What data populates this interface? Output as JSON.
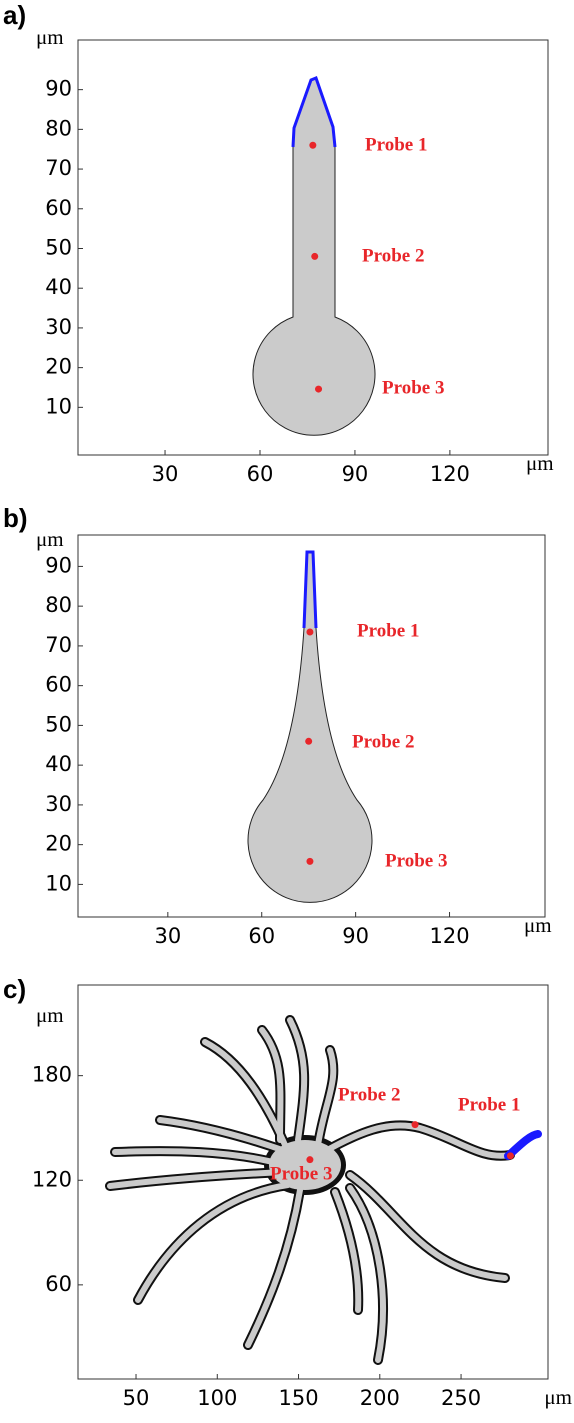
{
  "chart_data": [
    {
      "type": "scatter",
      "panel_label": "a)",
      "x_label": "μm",
      "y_label": "μm",
      "xlim": [
        2.5,
        151
      ],
      "ylim": [
        -2,
        102.5
      ],
      "xticks": [
        30,
        60,
        90,
        120
      ],
      "yticks": [
        10,
        20,
        30,
        40,
        50,
        60,
        70,
        80,
        90
      ],
      "x": [
        76.7,
        77.3,
        78.5
      ],
      "y": [
        76,
        48,
        14.6
      ],
      "point_labels": [
        "Probe 1",
        "Probe 2",
        "Probe 3"
      ],
      "color": "#e8262a"
    },
    {
      "type": "scatter",
      "panel_label": "b)",
      "x_label": "μm",
      "y_label": "μm",
      "xlim": [
        1.3,
        150.5
      ],
      "ylim": [
        1.8,
        97.9
      ],
      "xticks": [
        30,
        60,
        90,
        120
      ],
      "yticks": [
        10,
        20,
        30,
        40,
        50,
        60,
        70,
        80,
        90
      ],
      "x": [
        75.4,
        75,
        75.4
      ],
      "y": [
        73.5,
        46,
        15.8
      ],
      "point_labels": [
        "Probe 1",
        "Probe 2",
        "Probe 3"
      ],
      "color": "#e8262a"
    },
    {
      "type": "scatter",
      "panel_label": "c)",
      "x_label": "μm",
      "y_label": "μm",
      "xlim": [
        14.3,
        303.5
      ],
      "ylim": [
        6,
        232
      ],
      "xticks": [
        50,
        100,
        150,
        200,
        250
      ],
      "yticks": [
        60,
        120,
        180
      ],
      "x": [
        280.4,
        221.7,
        157
      ],
      "y": [
        134,
        151.9,
        131.8
      ],
      "point_labels": [
        "Probe 1",
        "Probe 2",
        "Probe 3"
      ],
      "color": "#e8262a"
    }
  ]
}
